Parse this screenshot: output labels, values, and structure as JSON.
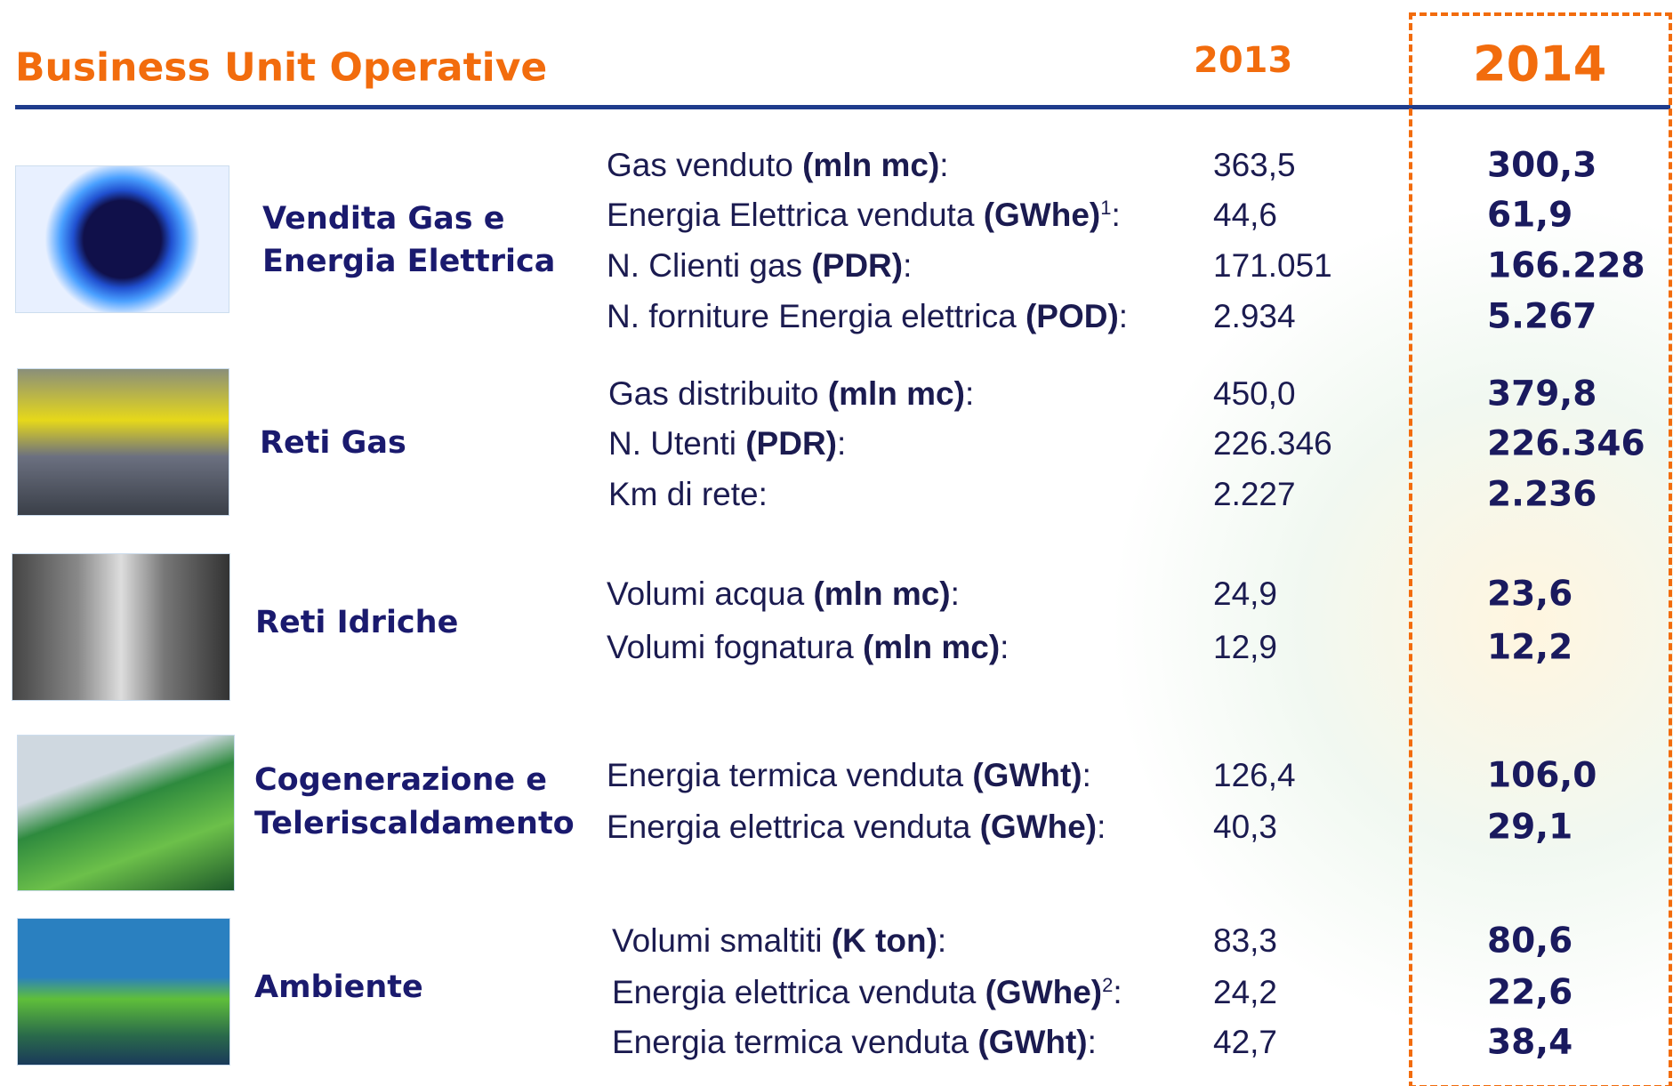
{
  "header": {
    "title": "Business Unit Operative",
    "year_prev": "2013",
    "year_curr": "2014"
  },
  "sections": [
    {
      "label": [
        "Vendita Gas e",
        "Energia Elettrica"
      ],
      "rows": [
        {
          "label": "Gas venduto",
          "unit": "(mln mc)",
          "end": ":",
          "prev": "363,5",
          "curr": "300,3"
        },
        {
          "label": "Energia Elettrica venduta",
          "unit": "(GWhe)",
          "note": "1",
          "end": ":",
          "prev": "44,6",
          "curr": "61,9"
        },
        {
          "label": "N. Clienti gas",
          "unit": "(PDR)",
          "end": ":",
          "prev": "171.051",
          "curr": "166.228"
        },
        {
          "label": "N. forniture Energia elettrica",
          "unit": "(POD)",
          "end": ":",
          "prev": "2.934",
          "curr": "5.267"
        }
      ]
    },
    {
      "label": [
        "Reti Gas"
      ],
      "rows": [
        {
          "label": "Gas distribuito",
          "unit": "(mln mc)",
          "end": ":",
          "prev": "450,0",
          "curr": "379,8"
        },
        {
          "label": "N. Utenti",
          "unit": "(PDR)",
          "end": ":",
          "prev": "226.346",
          "curr": "226.346"
        },
        {
          "label": "Km di rete:",
          "prev": "2.227",
          "curr": "2.236"
        }
      ]
    },
    {
      "label": [
        "Reti Idriche"
      ],
      "rows": [
        {
          "label": "Volumi acqua",
          "unit": "(mln mc)",
          "end": ":",
          "prev": "24,9",
          "curr": "23,6"
        },
        {
          "label": "Volumi fognatura",
          "unit": "(mln mc)",
          "end": ":",
          "prev": "12,9",
          "curr": "12,2"
        }
      ]
    },
    {
      "label": [
        "Cogenerazione e",
        "Teleriscaldamento"
      ],
      "rows": [
        {
          "label": "Energia termica venduta",
          "unit": "(GWht)",
          "end": ":",
          "prev": "126,4",
          "curr": "106,0"
        },
        {
          "label": "Energia elettrica venduta",
          "unit": "(GWhe)",
          "end": ":",
          "prev": "40,3",
          "curr": "29,1"
        }
      ]
    },
    {
      "label": [
        "Ambiente"
      ],
      "rows": [
        {
          "label": "Volumi smaltiti",
          "unit": "(K ton)",
          "end": ":",
          "prev": "83,3",
          "curr": "80,6"
        },
        {
          "label": "Energia elettrica venduta",
          "unit": "(GWhe)",
          "note": "2",
          "end": ":",
          "prev": "24,2",
          "curr": "22,6"
        },
        {
          "label": "Energia termica venduta",
          "unit": "(GWht)",
          "end": ":",
          "prev": "42,7",
          "curr": "38,4"
        }
      ]
    }
  ]
}
